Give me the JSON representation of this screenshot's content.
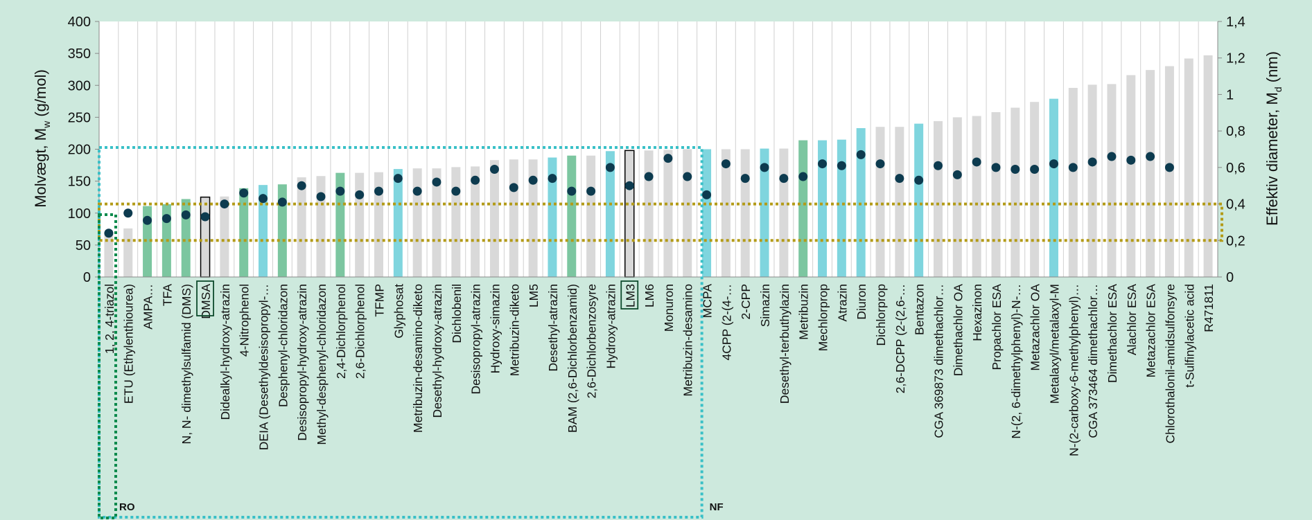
{
  "chart_data": {
    "type": "bar",
    "ylabel_left_main": "Molvægt, M",
    "ylabel_left_sub": "w",
    "ylabel_left_unit": " (g/mol)",
    "ylabel_right_main": "Effektiv diameter, M",
    "ylabel_right_sub": "d",
    "ylabel_right_unit": " (nm)",
    "ylim_left": [
      0,
      400
    ],
    "yticks_left": [
      "0",
      "50",
      "100",
      "150",
      "200",
      "250",
      "300",
      "350",
      "400"
    ],
    "ylim_right": [
      0,
      1.4
    ],
    "yticks_right": [
      "0",
      "0,2",
      "0,4",
      "0,6",
      "0,8",
      "1",
      "1,2",
      "1,4"
    ],
    "grid": "vertical",
    "categories": [
      "1, 2, 4-triazol",
      "ETU (Ethylenthiourea)",
      "AMPA…",
      "TFA",
      "N, N- dimethylsulfamid (DMS)",
      "DMSA",
      "Didealkyl-hydroxy-atrazin",
      "4-Nitrophenol",
      "DEIA (Desethyldesisopropyl-…",
      "Desphenyl-chloridazon",
      "Desisopropyl-hydroxy-atrazin",
      "Methyl-desphenyl-chloridazon",
      "2,4-Dichlorphenol",
      "2,6-Dichlorphenol",
      "TFMP",
      "Glyphosat",
      "Metribuzin-desamino-diketo",
      "Desethyl-hydroxy-atrazin",
      "Dichlobenil",
      "Desisopropyl-atrazin",
      "Hydroxy-simazin",
      "Metribuzin-diketo",
      "LM5",
      "Desethyl-atrazin",
      "BAM (2,6-Dichlorbenzamid)",
      "2,6-Dichlorbenzosyre",
      "Hydroxy-atrazin",
      "LM3",
      "LM6",
      "Monuron",
      "Metribuzin-desamino",
      "MCPA",
      "4CPP (2-(4-…",
      "2-CPP",
      "Simazin",
      "Desethyl-terbuthylazin",
      "Metribuzin",
      "Mechlorprop",
      "Atrazin",
      "Diuron",
      "Dichlorprop",
      "2,6-DCPP (2-(2,6-…",
      "Bentazon",
      "CGA 369873 dimethachlor…",
      "Dimethachlor OA",
      "Hexazinon",
      "Propachlor ESA",
      "N-(2, 6-dimethylphenyl)-N-…",
      "Metazachlor OA",
      "Metalaxyl/metalaxyl-M",
      "N-(2-carboxy-6-methylphenyl)…",
      "CGA 373464 dimethachlor…",
      "Dimethachlor ESA",
      "Alachlor ESA",
      "Metazachlor ESA",
      "Chlorothalonil-amidsulfonsyre",
      "t-Sulfinylacetic acid",
      "R471811"
    ],
    "series": [
      {
        "name": "",
        "axis": "left",
        "type": "bar",
        "values": [
          69,
          76,
          111,
          114,
          122,
          125,
          126,
          139,
          144,
          145,
          156,
          158,
          163,
          163,
          164,
          169,
          170,
          170,
          172,
          173,
          183,
          184,
          184,
          187,
          190,
          190,
          197,
          198,
          198,
          199,
          200,
          200,
          200,
          200,
          201,
          201,
          214,
          214,
          215,
          233,
          235,
          235,
          240,
          244,
          250,
          252,
          258,
          265,
          274,
          279,
          296,
          301,
          302,
          316,
          324,
          330,
          342,
          347
        ],
        "colors": [
          "#d9d9d9",
          "#d9d9d9",
          "#7cc6a0",
          "#7cc6a0",
          "#7cc6a0",
          "#d9d9d9",
          "#d9d9d9",
          "#7cc6a0",
          "#7fd5de",
          "#7cc6a0",
          "#d9d9d9",
          "#d9d9d9",
          "#7cc6a0",
          "#d9d9d9",
          "#d9d9d9",
          "#7fd5de",
          "#d9d9d9",
          "#d9d9d9",
          "#d9d9d9",
          "#d9d9d9",
          "#d9d9d9",
          "#d9d9d9",
          "#d9d9d9",
          "#7fd5de",
          "#7cc6a0",
          "#d9d9d9",
          "#7fd5de",
          "#d9d9d9",
          "#d9d9d9",
          "#d9d9d9",
          "#d9d9d9",
          "#7fd5de",
          "#d9d9d9",
          "#d9d9d9",
          "#7fd5de",
          "#d9d9d9",
          "#7cc6a0",
          "#7fd5de",
          "#7fd5de",
          "#7fd5de",
          "#d9d9d9",
          "#d9d9d9",
          "#7fd5de",
          "#d9d9d9",
          "#d9d9d9",
          "#d9d9d9",
          "#d9d9d9",
          "#d9d9d9",
          "#d9d9d9",
          "#7fd5de",
          "#d9d9d9",
          "#d9d9d9",
          "#d9d9d9",
          "#d9d9d9",
          "#d9d9d9",
          "#d9d9d9",
          "#d9d9d9",
          "#d9d9d9"
        ],
        "outlined_categories": [
          "DMSA",
          "LM3"
        ]
      },
      {
        "name": "",
        "axis": "right",
        "type": "scatter",
        "values": [
          0.24,
          0.35,
          0.31,
          0.32,
          0.34,
          0.33,
          0.4,
          0.46,
          0.43,
          0.41,
          0.5,
          0.44,
          0.47,
          0.45,
          0.47,
          0.54,
          0.47,
          0.52,
          0.47,
          0.53,
          0.59,
          0.49,
          0.53,
          0.54,
          0.47,
          0.47,
          0.6,
          0.5,
          0.55,
          0.65,
          0.55,
          0.45,
          0.62,
          0.54,
          0.6,
          0.54,
          0.55,
          0.62,
          0.61,
          0.67,
          0.62,
          0.54,
          0.53,
          0.61,
          0.56,
          0.63,
          0.6,
          0.59,
          0.59,
          0.62,
          0.6,
          0.63,
          0.66,
          0.64,
          0.66,
          0.6,
          null,
          null
        ],
        "color": "#0d3b4f"
      }
    ],
    "annotations": [
      {
        "text": "RO",
        "color": "#0b8a4c",
        "style": "dotted-box"
      },
      {
        "text": "NF",
        "color": "#39c0c7",
        "style": "dotted-box"
      },
      {
        "text": "",
        "color": "#b39b18",
        "style": "dotted-box"
      }
    ]
  }
}
